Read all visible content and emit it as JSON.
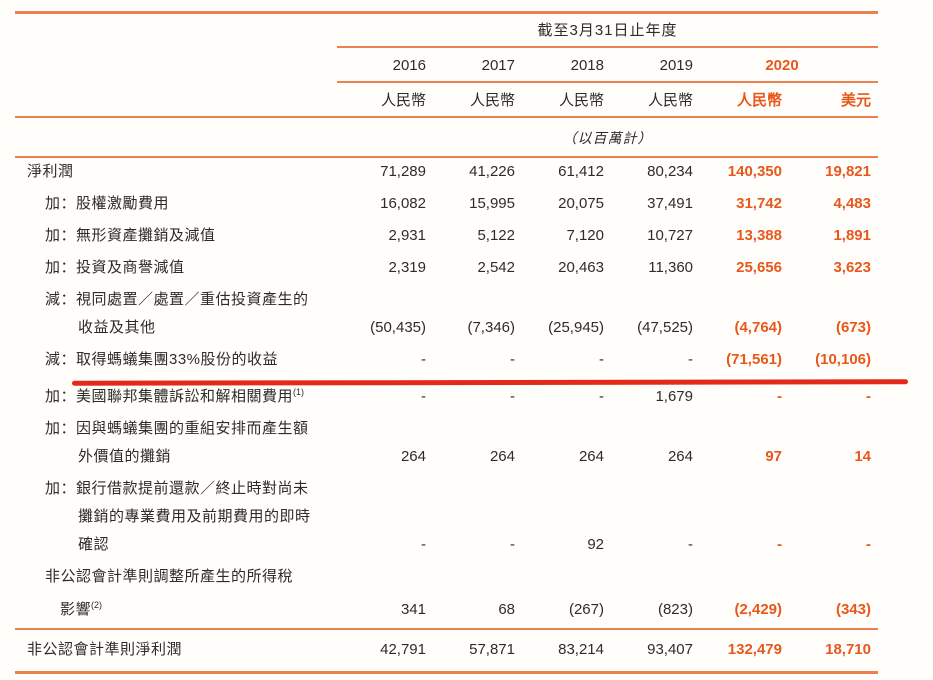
{
  "header": {
    "period_title": "截至3月31日止年度",
    "years": [
      "2016",
      "2017",
      "2018",
      "2019",
      "2020"
    ],
    "currencies": [
      "人民幣",
      "人民幣",
      "人民幣",
      "人民幣",
      "人民幣",
      "美元"
    ],
    "unit_note": "（以百萬計）"
  },
  "colors": {
    "accent_orange": "#E8571C",
    "rule_orange": "#EC8150",
    "annotation_red": "#E32A1A",
    "text_black": "#2E2C29"
  },
  "rows": [
    {
      "label_lines": [
        "淨利潤"
      ],
      "values": [
        "71,289",
        "41,226",
        "61,412",
        "80,234",
        "140,350",
        "19,821"
      ]
    },
    {
      "label_lines": [
        "加：股權激勵費用"
      ],
      "values": [
        "16,082",
        "15,995",
        "20,075",
        "37,491",
        "31,742",
        "4,483"
      ]
    },
    {
      "label_lines": [
        "加：無形資產攤銷及減值"
      ],
      "values": [
        "2,931",
        "5,122",
        "7,120",
        "10,727",
        "13,388",
        "1,891"
      ]
    },
    {
      "label_lines": [
        "加：投資及商譽減值"
      ],
      "values": [
        "2,319",
        "2,542",
        "20,463",
        "11,360",
        "25,656",
        "3,623"
      ]
    },
    {
      "label_lines": [
        "減：視同處置／處置／重估投資產生的",
        "收益及其他"
      ],
      "values": [
        "(50,435)",
        "(7,346)",
        "(25,945)",
        "(47,525)",
        "(4,764)",
        "(673)"
      ]
    },
    {
      "label_lines": [
        "減：取得螞蟻集團33%股份的收益"
      ],
      "values": [
        "-",
        "-",
        "-",
        "-",
        "(71,561)",
        "(10,106)"
      ],
      "annotation": "red-underline"
    },
    {
      "label_lines": [
        "加：美國聯邦集體訴訟和解相關費用"
      ],
      "sup": "(1)",
      "values": [
        "-",
        "-",
        "-",
        "1,679",
        "-",
        "-"
      ]
    },
    {
      "label_lines": [
        "加：因與螞蟻集團的重組安排而產生額",
        "外價值的攤銷"
      ],
      "values": [
        "264",
        "264",
        "264",
        "264",
        "97",
        "14"
      ]
    },
    {
      "label_lines": [
        "加：銀行借款提前還款／終止時對尚未",
        "攤銷的專業費用及前期費用的即時",
        "確認"
      ],
      "values": [
        "-",
        "-",
        "92",
        "-",
        "-",
        "-"
      ]
    },
    {
      "label_lines": [
        "非公認會計準則調整所產生的所得稅",
        "影響"
      ],
      "sup": "(2)",
      "values": [
        "341",
        "68",
        "(267)",
        "(823)",
        "(2,429)",
        "(343)"
      ]
    },
    {
      "label_lines": [
        "非公認會計準則淨利潤"
      ],
      "values": [
        "42,791",
        "57,871",
        "83,214",
        "93,407",
        "132,479",
        "18,710"
      ]
    }
  ]
}
